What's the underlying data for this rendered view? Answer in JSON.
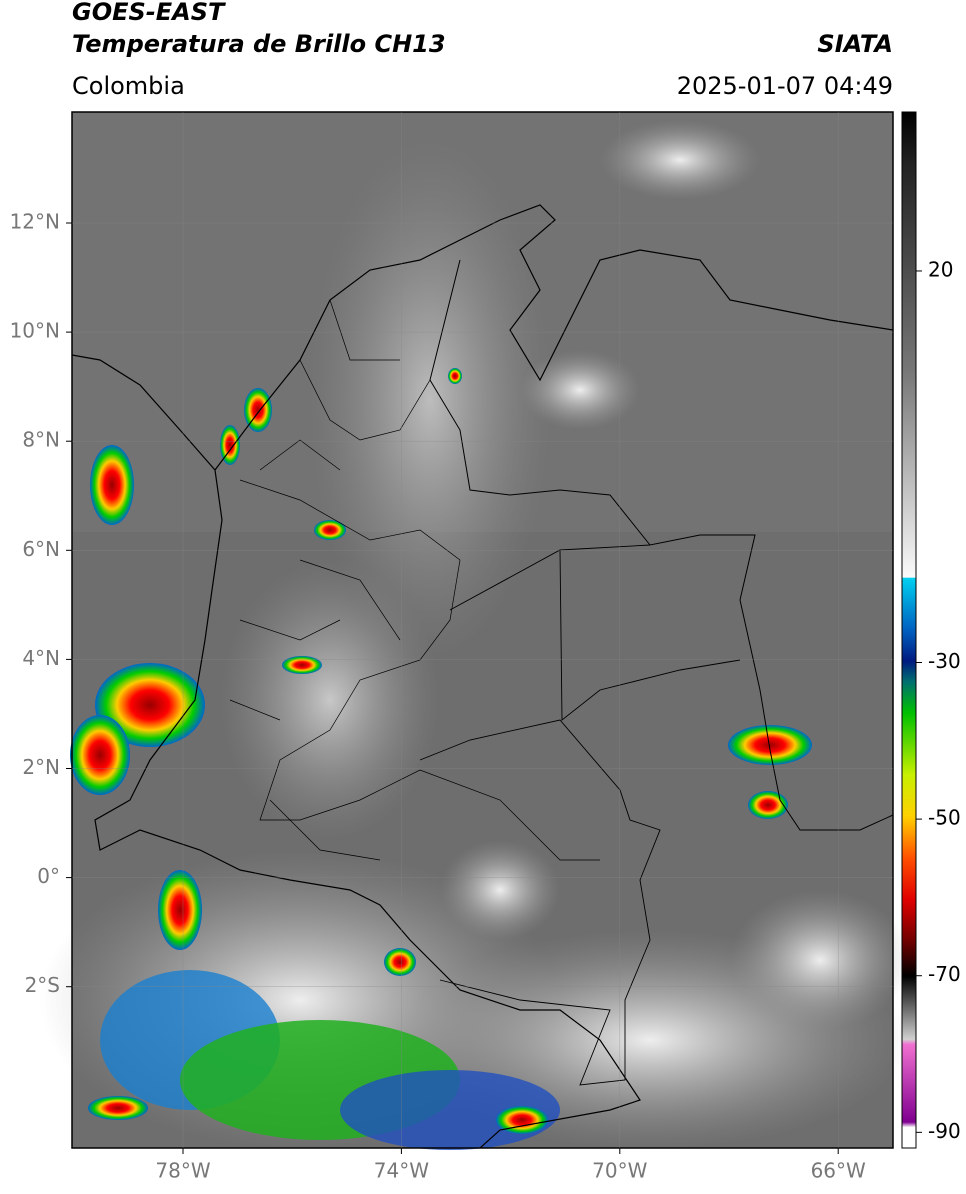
{
  "header": {
    "title": "GOES-EAST",
    "subtitle": "Temperatura de Brillo CH13",
    "source": "SIATA",
    "region": "Colombia",
    "timestamp": "2025-01-07 04:49"
  },
  "map": {
    "lat_labels": [
      "12°N",
      "10°N",
      "8°N",
      "6°N",
      "4°N",
      "2°N",
      "0°",
      "2°S"
    ],
    "lon_labels": [
      "78°W",
      "74°W",
      "70°W",
      "66°W"
    ]
  },
  "colorbar": {
    "range": [
      40.3,
      -92
    ],
    "ticks": [
      20,
      -30,
      -50,
      -70,
      -90
    ]
  }
}
